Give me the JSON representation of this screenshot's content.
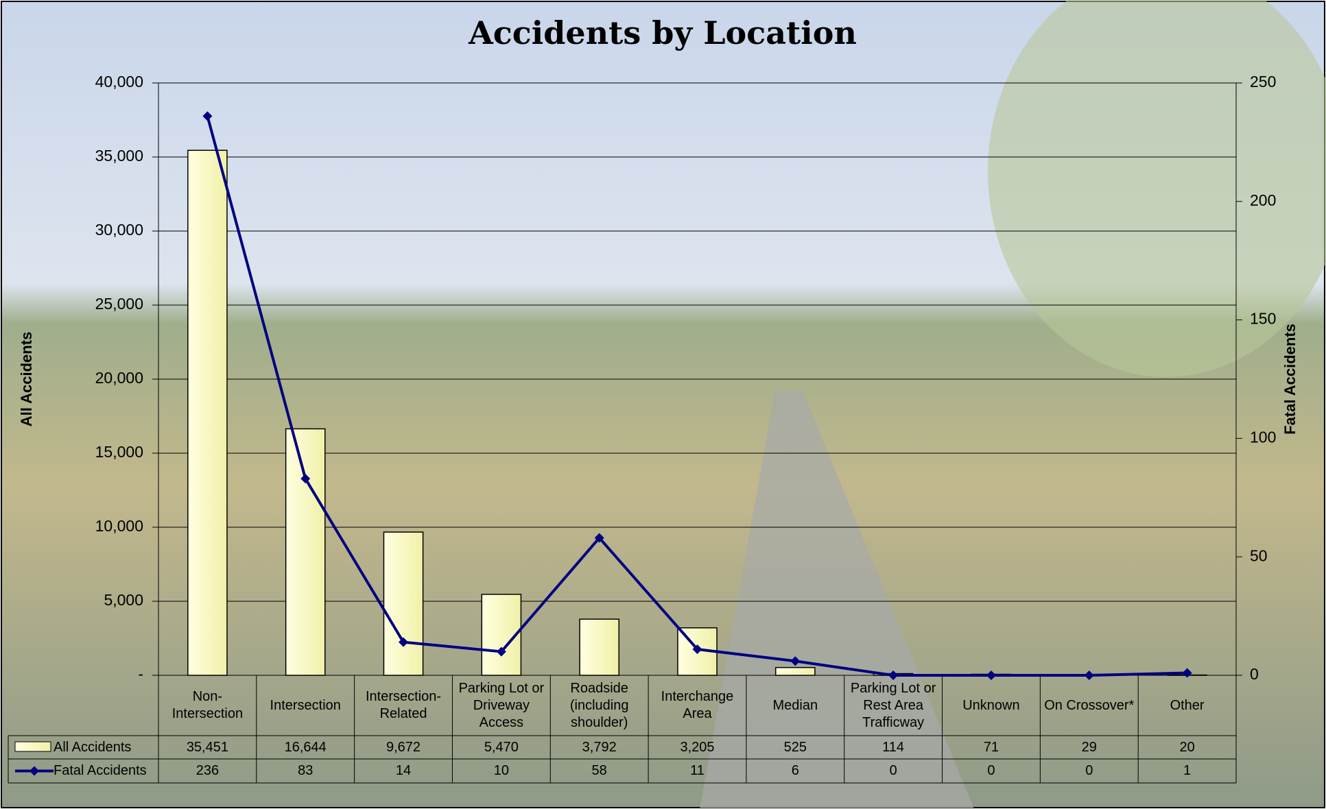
{
  "chart_data": {
    "type": "bar",
    "title": "Accidents by Location",
    "y_label": "All Accidents",
    "y2_label": "Fatal Accidents",
    "categories": [
      "Non-Intersection",
      "Intersection",
      "Intersection-Related",
      "Parking Lot or Driveway Access",
      "Roadside (including shoulder)",
      "Interchange Area",
      "Median",
      "Parking Lot or Rest Area Trafficway",
      "Unknown",
      "On Crossover*",
      "Other"
    ],
    "series": [
      {
        "name": "All Accidents",
        "type": "bar",
        "color": "#ffffc8",
        "values": [
          35451,
          16644,
          9672,
          5470,
          3792,
          3205,
          525,
          114,
          71,
          29,
          20
        ],
        "value_labels": [
          "35,451",
          "16,644",
          "9,672",
          "5,470",
          "3,792",
          "3,205",
          "525",
          "114",
          "71",
          "29",
          "20"
        ]
      },
      {
        "name": "Fatal Accidents",
        "type": "line",
        "axis": "y2",
        "color": "#000080",
        "values": [
          236,
          83,
          14,
          10,
          58,
          11,
          6,
          0,
          0,
          0,
          1
        ]
      }
    ],
    "ylim": [
      0,
      40000
    ],
    "yticks": [
      {
        "value": 0,
        "label": "-"
      },
      {
        "value": 5000,
        "label": "5,000"
      },
      {
        "value": 10000,
        "label": "10,000"
      },
      {
        "value": 15000,
        "label": "15,000"
      },
      {
        "value": 20000,
        "label": "20,000"
      },
      {
        "value": 25000,
        "label": "25,000"
      },
      {
        "value": 30000,
        "label": "30,000"
      },
      {
        "value": 35000,
        "label": "35,000"
      },
      {
        "value": 40000,
        "label": "40,000"
      }
    ],
    "y2lim": [
      0,
      250
    ],
    "y2ticks": [
      0,
      50,
      100,
      150,
      200,
      250
    ],
    "grid": true
  }
}
